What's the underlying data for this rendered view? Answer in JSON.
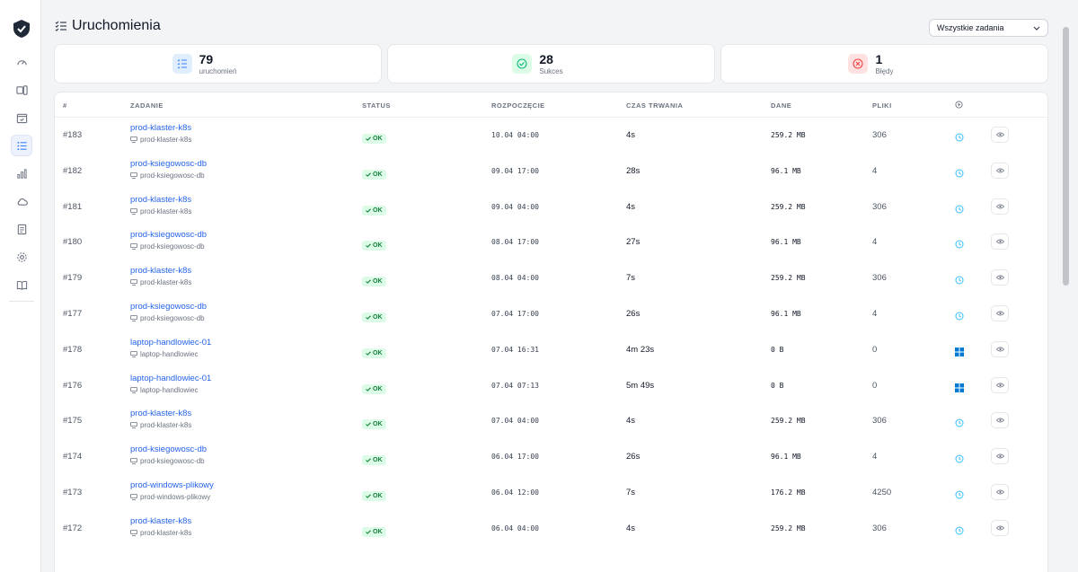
{
  "page": {
    "title": "Uruchomienia"
  },
  "filter": {
    "selected": "Wszystkie zadania"
  },
  "stats": [
    {
      "value": "79",
      "label": "uruchomień",
      "icon": "list-icon",
      "color": "#3b82f6",
      "bg": "#e0edfd"
    },
    {
      "value": "28",
      "label": "Sukces",
      "icon": "check-circle-icon",
      "color": "#10b981",
      "bg": "#dcfce7"
    },
    {
      "value": "1",
      "label": "Błędy",
      "icon": "x-circle-icon",
      "color": "#ef4444",
      "bg": "#fee2e2"
    }
  ],
  "table": {
    "headers": {
      "id": "#",
      "task": "Zadanie",
      "status": "Status",
      "start": "Rozpoczęcie",
      "duration": "Czas trwania",
      "data": "Dane",
      "files": "Pliki"
    },
    "rows": [
      {
        "id": "#183",
        "task": "prod-klaster-k8s",
        "host": "prod-klaster-k8s",
        "status": "OK",
        "start": "10.04 04:00",
        "duration": "4s",
        "data": "259.2 MB",
        "files": "306",
        "type": "clock-icon"
      },
      {
        "id": "#182",
        "task": "prod-ksiegowosc-db",
        "host": "prod-ksiegowosc-db",
        "status": "OK",
        "start": "09.04 17:00",
        "duration": "28s",
        "data": "96.1 MB",
        "files": "4",
        "type": "clock-icon"
      },
      {
        "id": "#181",
        "task": "prod-klaster-k8s",
        "host": "prod-klaster-k8s",
        "status": "OK",
        "start": "09.04 04:00",
        "duration": "4s",
        "data": "259.2 MB",
        "files": "306",
        "type": "clock-icon"
      },
      {
        "id": "#180",
        "task": "prod-ksiegowosc-db",
        "host": "prod-ksiegowosc-db",
        "status": "OK",
        "start": "08.04 17:00",
        "duration": "27s",
        "data": "96.1 MB",
        "files": "4",
        "type": "clock-icon"
      },
      {
        "id": "#179",
        "task": "prod-klaster-k8s",
        "host": "prod-klaster-k8s",
        "status": "OK",
        "start": "08.04 04:00",
        "duration": "7s",
        "data": "259.2 MB",
        "files": "306",
        "type": "clock-icon"
      },
      {
        "id": "#177",
        "task": "prod-ksiegowosc-db",
        "host": "prod-ksiegowosc-db",
        "status": "OK",
        "start": "07.04 17:00",
        "duration": "26s",
        "data": "96.1 MB",
        "files": "4",
        "type": "clock-icon"
      },
      {
        "id": "#178",
        "task": "laptop-handlowiec-01",
        "host": "laptop-handlowiec",
        "status": "OK",
        "start": "07.04 16:31",
        "duration": "4m 23s",
        "data": "0 B",
        "files": "0",
        "type": "windows-icon"
      },
      {
        "id": "#176",
        "task": "laptop-handlowiec-01",
        "host": "laptop-handlowiec",
        "status": "OK",
        "start": "07.04 07:13",
        "duration": "5m 49s",
        "data": "0 B",
        "files": "0",
        "type": "windows-icon"
      },
      {
        "id": "#175",
        "task": "prod-klaster-k8s",
        "host": "prod-klaster-k8s",
        "status": "OK",
        "start": "07.04 04:00",
        "duration": "4s",
        "data": "259.2 MB",
        "files": "306",
        "type": "clock-icon"
      },
      {
        "id": "#174",
        "task": "prod-ksiegowosc-db",
        "host": "prod-ksiegowosc-db",
        "status": "OK",
        "start": "06.04 17:00",
        "duration": "26s",
        "data": "96.1 MB",
        "files": "4",
        "type": "clock-icon"
      },
      {
        "id": "#173",
        "task": "prod-windows-plikowy",
        "host": "prod-windows-plikowy",
        "status": "OK",
        "start": "06.04 12:00",
        "duration": "7s",
        "data": "176.2 MB",
        "files": "4250",
        "type": "clock-icon"
      },
      {
        "id": "#172",
        "task": "prod-klaster-k8s",
        "host": "prod-klaster-k8s",
        "status": "OK",
        "start": "06.04 04:00",
        "duration": "4s",
        "data": "259.2 MB",
        "files": "306",
        "type": "clock-icon"
      }
    ]
  },
  "sidebar": {
    "items": [
      {
        "icon": "dashboard-icon",
        "active": false
      },
      {
        "icon": "devices-icon",
        "active": false
      },
      {
        "icon": "calendar-check-icon",
        "active": false
      },
      {
        "icon": "list-icon",
        "active": true
      },
      {
        "icon": "bar-chart-icon",
        "active": false
      },
      {
        "icon": "cloud-icon",
        "active": false
      },
      {
        "icon": "document-icon",
        "active": false
      },
      {
        "icon": "gear-icon",
        "active": false
      },
      {
        "icon": "book-icon",
        "active": false
      }
    ]
  }
}
